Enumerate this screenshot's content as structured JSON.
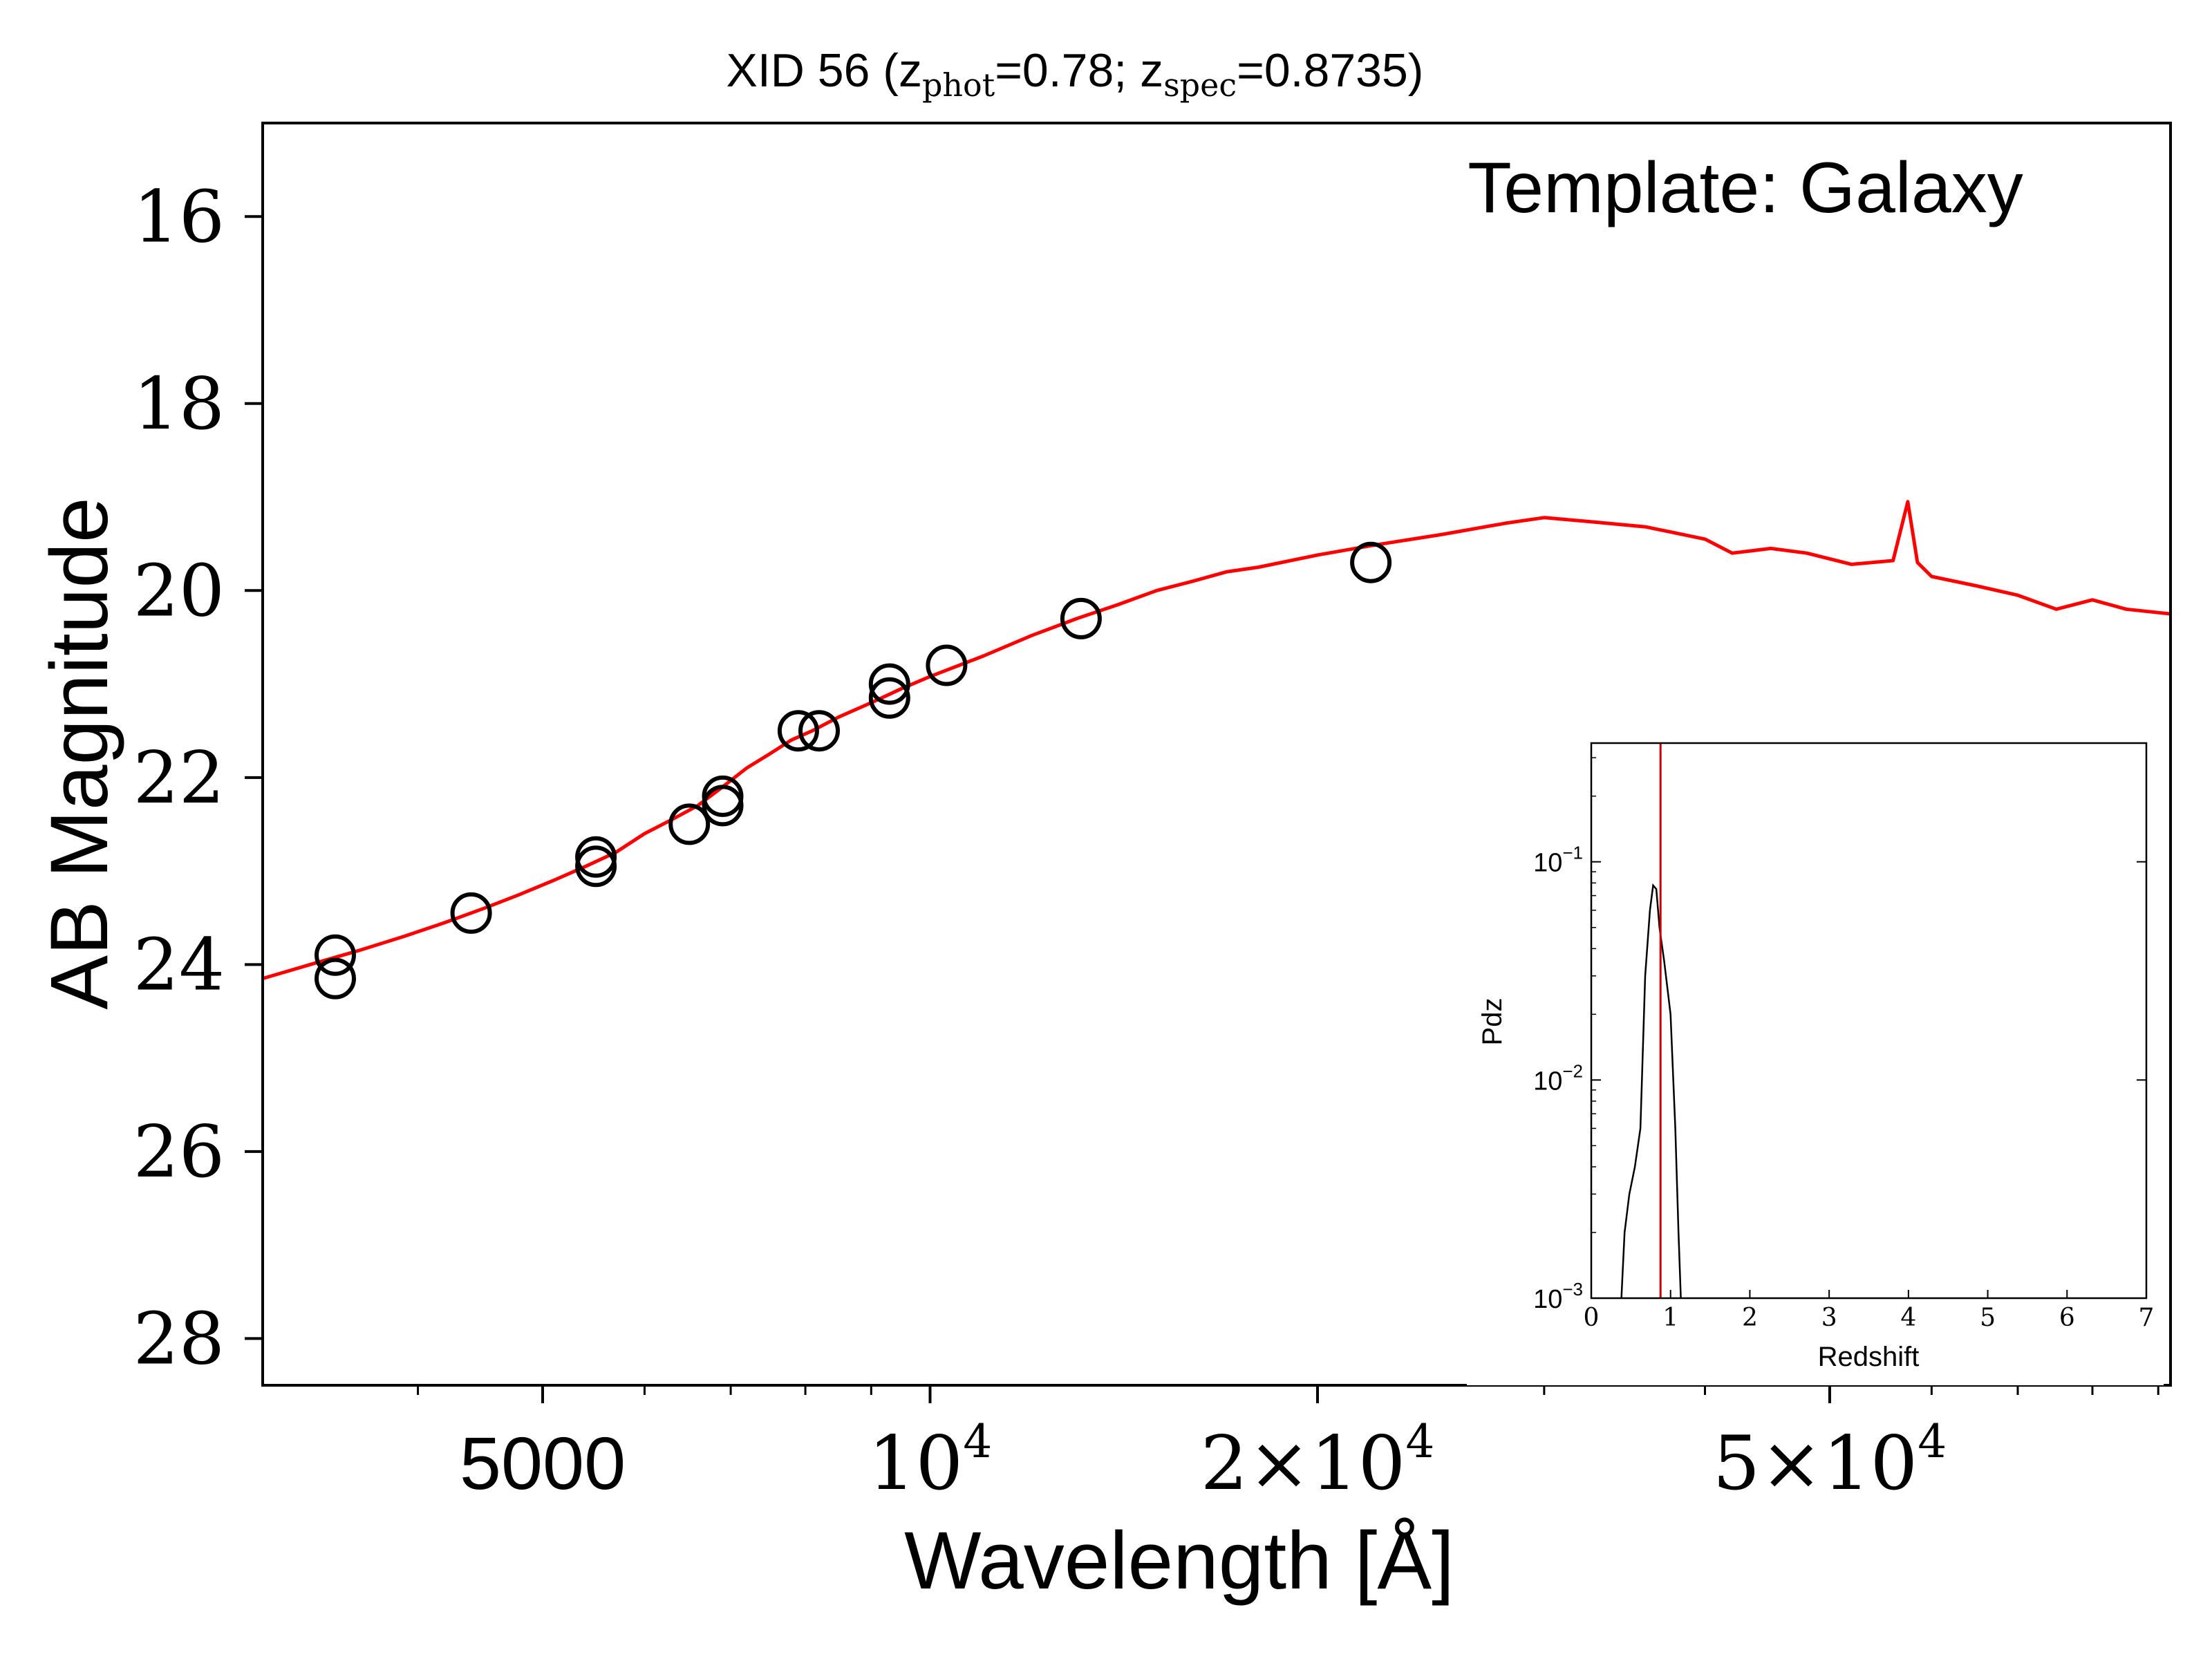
{
  "chart_data": [
    {
      "type": "scatter",
      "title": {
        "prefix": "XID 56 (z",
        "sub1": "phot",
        "mid": "=0.78; z",
        "sub2": "spec",
        "suffix": "=0.8735)"
      },
      "annotation": "Template: Galaxy",
      "xlabel": "Wavelength [Å]",
      "ylabel": "AB Magnitude",
      "xscale": "log",
      "xlim": [
        3030,
        92000
      ],
      "ylim": [
        28.5,
        15.0
      ],
      "y_inverted": true,
      "xticks": [
        {
          "value": 5000,
          "parts": [
            {
              "t": "5000"
            }
          ]
        },
        {
          "value": 10000,
          "parts": [
            {
              "t": "10"
            },
            {
              "t": "4",
              "sup": true
            }
          ]
        },
        {
          "value": 20000,
          "parts": [
            {
              "t": "2×10"
            },
            {
              "t": "4",
              "sup": true
            }
          ]
        },
        {
          "value": 50000,
          "parts": [
            {
              "t": "5×10"
            },
            {
              "t": "4",
              "sup": true
            }
          ]
        }
      ],
      "yticks": [
        "16",
        "18",
        "20",
        "22",
        "24",
        "26",
        "28"
      ],
      "grid": false,
      "series": [
        {
          "kind": "line",
          "color": "#ff0000",
          "x": [
            3030,
            3300,
            3600,
            3900,
            4200,
            4500,
            4800,
            5100,
            5400,
            5700,
            6000,
            6300,
            6600,
            6900,
            7200,
            7500,
            7800,
            8100,
            8500,
            9000,
            9500,
            10000,
            11000,
            12000,
            13000,
            14000,
            15000,
            16000,
            17000,
            18000,
            20000,
            22000,
            25000,
            28000,
            30000,
            33000,
            36000,
            40000,
            42000,
            45000,
            48000,
            52000,
            56000,
            57500,
            58500,
            60000,
            65000,
            70000,
            75000,
            80000,
            85000,
            92000
          ],
          "y": [
            24.15,
            24.0,
            23.85,
            23.7,
            23.55,
            23.4,
            23.25,
            23.1,
            22.95,
            22.8,
            22.6,
            22.45,
            22.3,
            22.1,
            21.9,
            21.75,
            21.6,
            21.5,
            21.35,
            21.2,
            21.05,
            20.92,
            20.7,
            20.48,
            20.3,
            20.15,
            20.0,
            19.9,
            19.8,
            19.75,
            19.62,
            19.52,
            19.4,
            19.28,
            19.22,
            19.27,
            19.32,
            19.45,
            19.6,
            19.55,
            19.6,
            19.72,
            19.68,
            19.05,
            19.7,
            19.85,
            19.95,
            20.05,
            20.2,
            20.1,
            20.2,
            20.25
          ]
        },
        {
          "kind": "markers",
          "marker": "open-circle",
          "color": "#000000",
          "x": [
            3450,
            3450,
            4400,
            5500,
            5500,
            6500,
            6900,
            6900,
            7900,
            8200,
            9300,
            9300,
            10300,
            13100,
            22000
          ],
          "y": [
            23.9,
            24.15,
            23.45,
            22.85,
            22.95,
            22.5,
            22.2,
            22.3,
            21.5,
            21.5,
            21.0,
            21.15,
            20.8,
            20.3,
            19.7
          ]
        }
      ]
    },
    {
      "type": "line",
      "inset": true,
      "xlabel": "Redshift",
      "ylabel": "Pdz",
      "yscale": "log",
      "xlim": [
        0,
        7
      ],
      "ylim": [
        0.001,
        0.35
      ],
      "xticks": [
        "0",
        "1",
        "2",
        "3",
        "4",
        "5",
        "6",
        "7"
      ],
      "yticks": [
        {
          "value": 0.1,
          "base": "10",
          "exp": "−1"
        },
        {
          "value": 0.01,
          "base": "10",
          "exp": "−2"
        },
        {
          "value": 0.001,
          "base": "10",
          "exp": "−3"
        }
      ],
      "series": [
        {
          "kind": "line",
          "color": "#000000",
          "x": [
            0.38,
            0.42,
            0.48,
            0.55,
            0.62,
            0.68,
            0.74,
            0.78,
            0.82,
            0.86,
            0.92,
            1.0,
            1.06,
            1.1,
            1.13
          ],
          "y": [
            0.001,
            0.002,
            0.003,
            0.004,
            0.006,
            0.03,
            0.06,
            0.078,
            0.075,
            0.05,
            0.035,
            0.02,
            0.006,
            0.002,
            0.001
          ]
        },
        {
          "kind": "vline",
          "color": "#cc0000",
          "x": 0.8735
        }
      ]
    }
  ]
}
